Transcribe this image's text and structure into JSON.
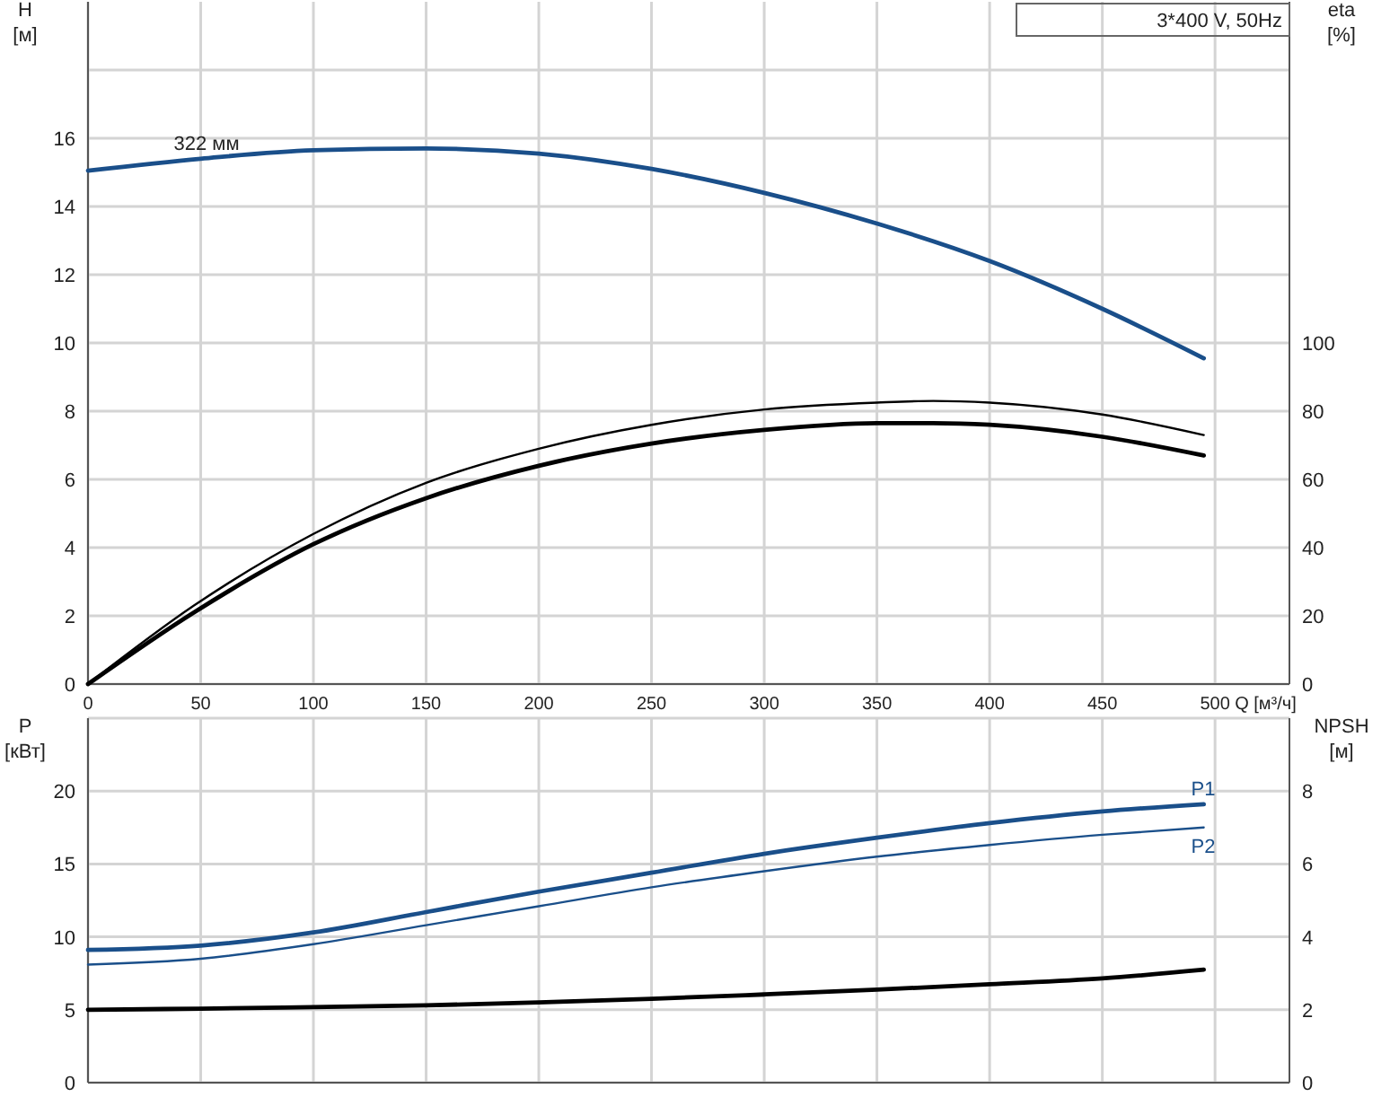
{
  "chart_data": [
    {
      "type": "line",
      "title": "3*400 V, 50Hz",
      "xlabel": "Q [м³/ч]",
      "ylabel": "H [м]",
      "y2label": "eta [%]",
      "xlim": [
        0,
        533
      ],
      "xticks": [
        0,
        50,
        100,
        150,
        200,
        250,
        300,
        350,
        400,
        450,
        500
      ],
      "ylim": [
        0,
        20
      ],
      "yticks": [
        0,
        2,
        4,
        6,
        8,
        10,
        12,
        14,
        16,
        {
          "value": 18,
          "label": null
        }
      ],
      "y2lim": [
        0,
        200
      ],
      "y2ticks": [
        0,
        20,
        40,
        60,
        80,
        100
      ],
      "grid": true,
      "x": [
        0,
        50,
        100,
        150,
        200,
        250,
        300,
        350,
        400,
        450,
        495
      ],
      "series": [
        {
          "name": "322 мм",
          "color": "#1a4f8a",
          "values": [
            15.05,
            15.4,
            15.65,
            15.7,
            15.55,
            15.1,
            14.4,
            13.5,
            12.4,
            11.0,
            9.55
          ]
        },
        {
          "color": "#000000",
          "axis": "y2",
          "x": [
            0,
            47,
            100,
            150,
            200,
            250,
            300,
            350,
            375,
            400,
            450,
            495
          ],
          "values": [
            0,
            23,
            44,
            59,
            69,
            76,
            80.5,
            82.5,
            83,
            82.5,
            79,
            73
          ]
        },
        {
          "color": "#000000",
          "axis": "y2",
          "x": [
            0,
            47,
            100,
            150,
            200,
            250,
            300,
            350,
            375,
            400,
            450,
            495
          ],
          "values": [
            0,
            21,
            41,
            54.5,
            64,
            70.5,
            74.5,
            76.5,
            76.5,
            76,
            72.5,
            67
          ]
        }
      ]
    },
    {
      "type": "line",
      "ylabel": "P [кВт]",
      "y2label": "NPSH [м]",
      "xlim": [
        0,
        533
      ],
      "xticks": [
        0,
        50,
        100,
        150,
        200,
        250,
        300,
        350,
        400,
        450,
        500
      ],
      "ylim": [
        0,
        25
      ],
      "yticks": [
        0,
        5,
        10,
        15,
        20,
        {
          "value": 25,
          "label": null
        }
      ],
      "y2lim": [
        0,
        10
      ],
      "y2ticks": [
        0,
        2,
        4,
        6,
        8
      ],
      "grid": true,
      "tick_labels": "y",
      "x": [
        0,
        50,
        100,
        150,
        200,
        250,
        300,
        350,
        400,
        450,
        495
      ],
      "series": [
        {
          "name": "P1",
          "color": "#1a4f8a",
          "values": [
            9.1,
            9.4,
            10.3,
            11.7,
            13.1,
            14.4,
            15.7,
            16.8,
            17.8,
            18.6,
            19.1
          ]
        },
        {
          "name": "P2",
          "color": "#1a4f8a",
          "values": [
            8.1,
            8.5,
            9.5,
            10.8,
            12.1,
            13.4,
            14.5,
            15.5,
            16.3,
            17.0,
            17.5
          ]
        },
        {
          "color": "#000000",
          "axis": "y2",
          "values": [
            2.0,
            2.03,
            2.07,
            2.12,
            2.2,
            2.3,
            2.42,
            2.55,
            2.7,
            2.86,
            3.1
          ]
        }
      ]
    }
  ]
}
